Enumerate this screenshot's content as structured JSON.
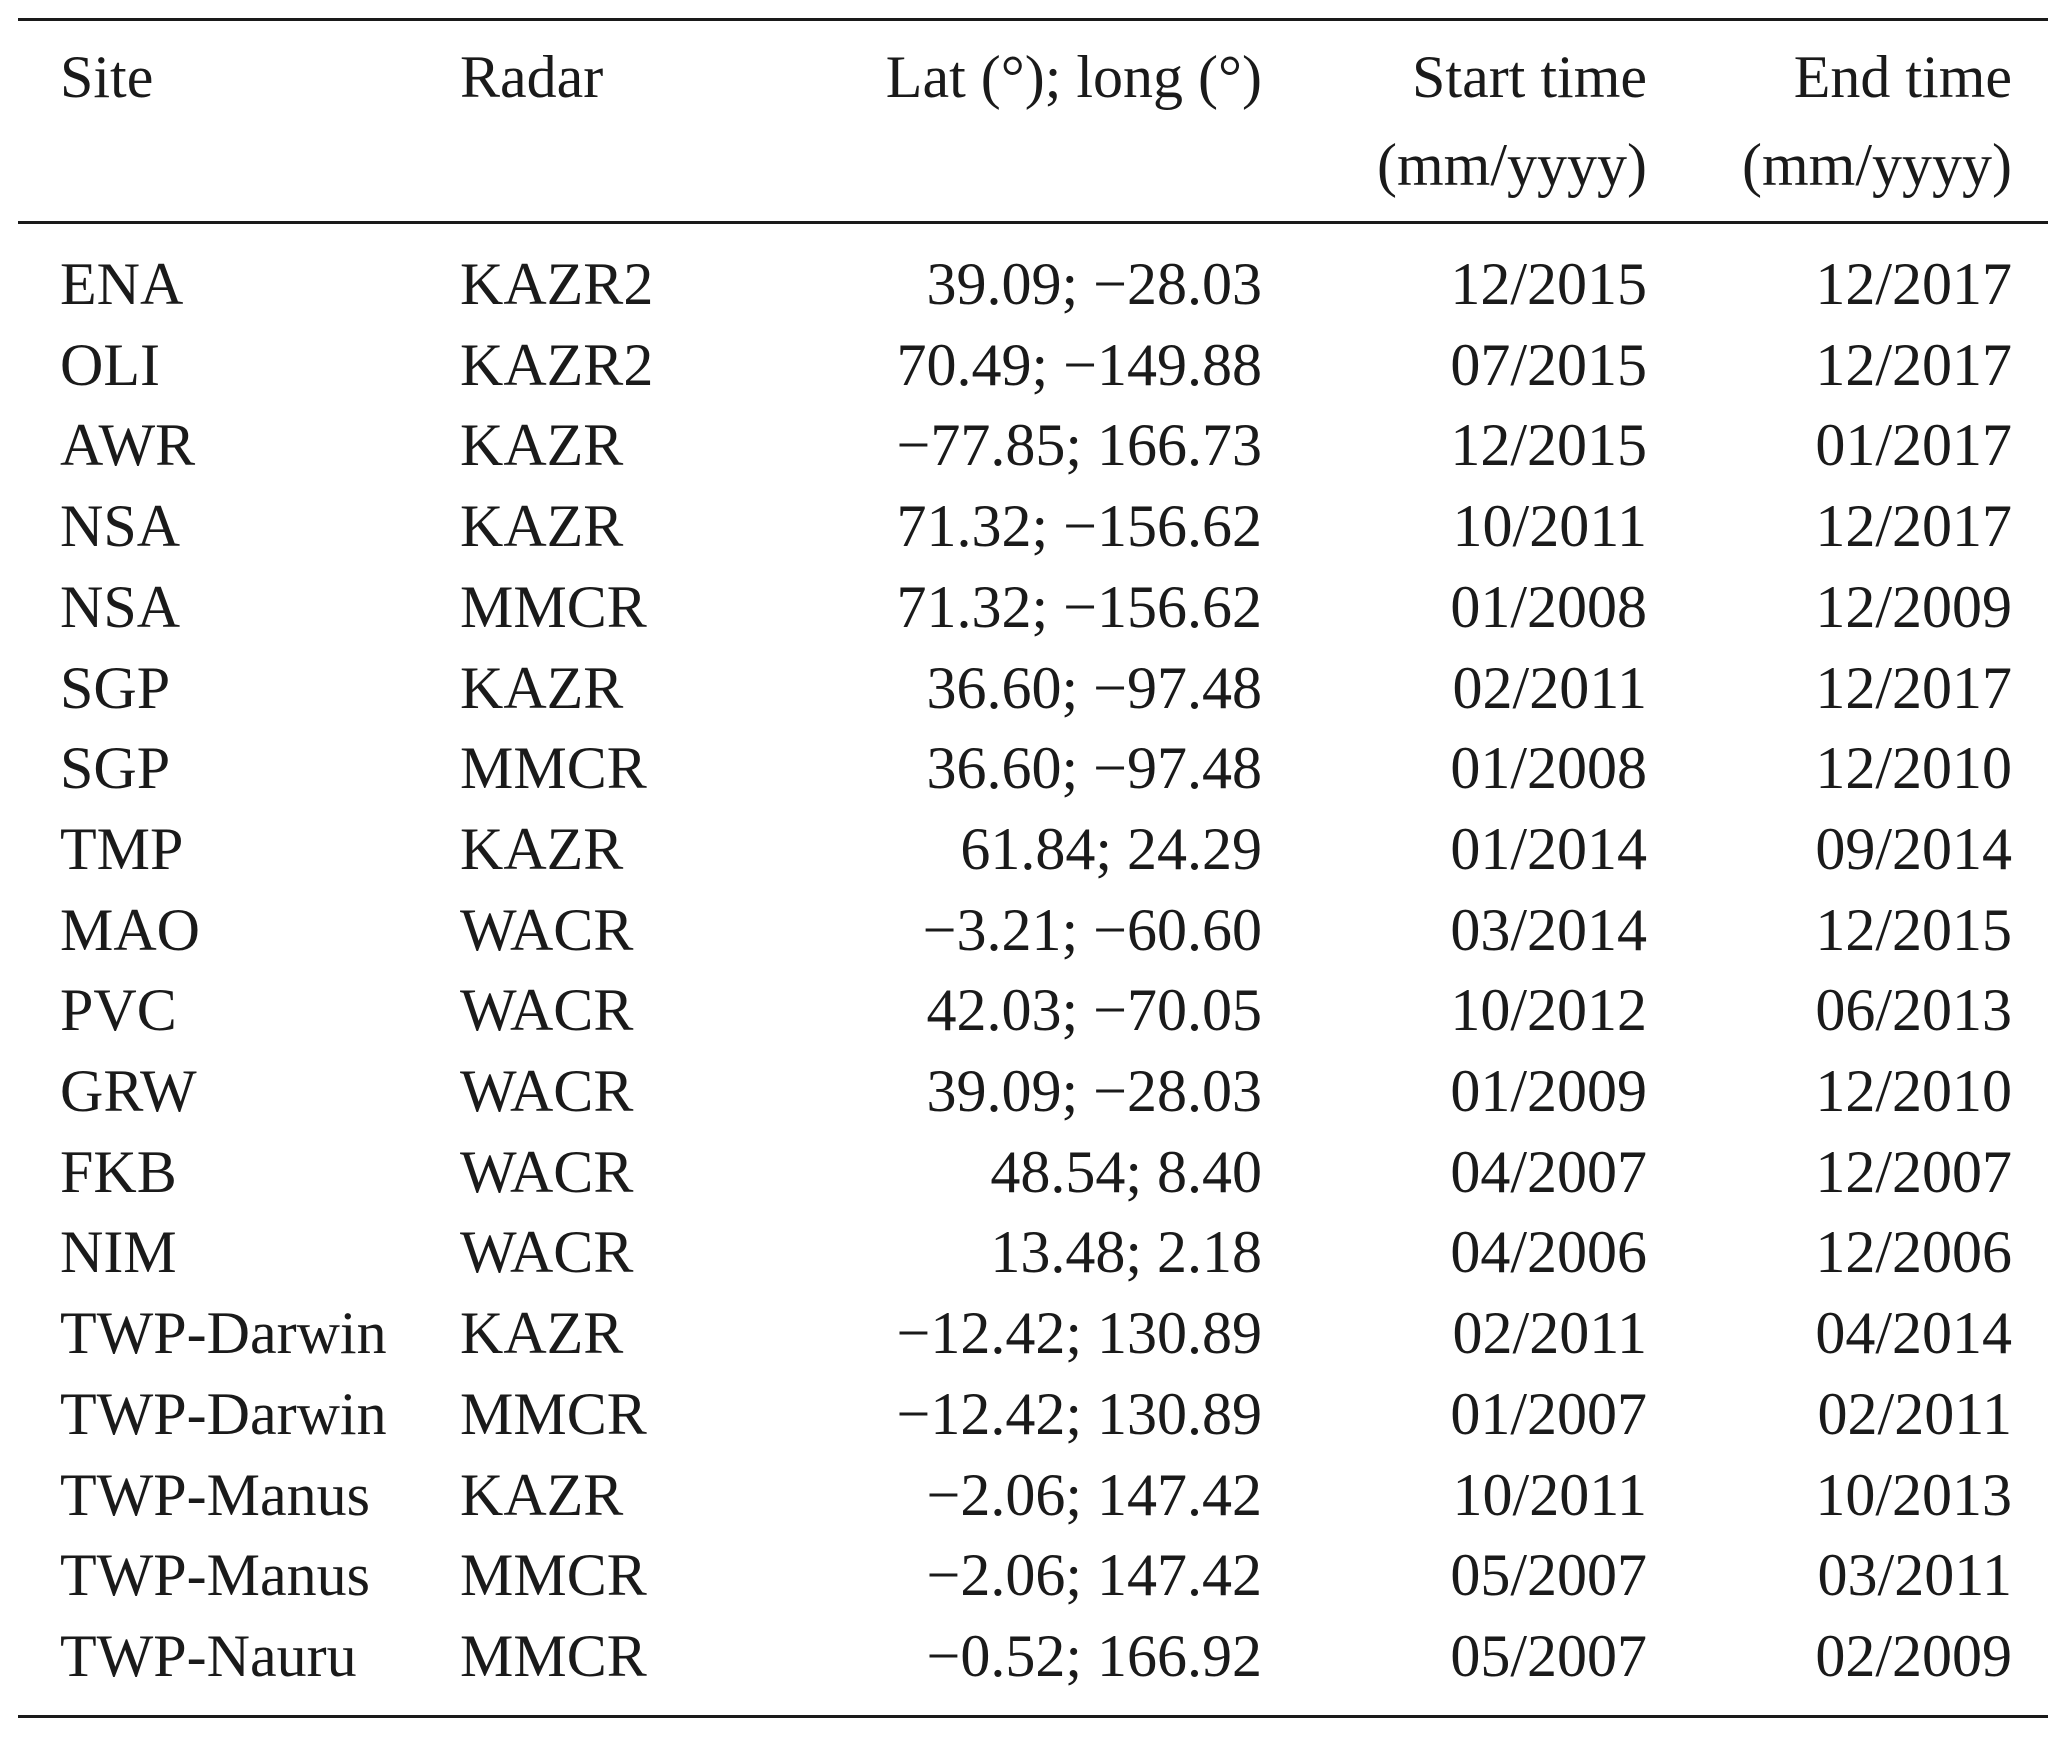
{
  "table": {
    "headers": {
      "site": "Site",
      "radar": "Radar",
      "latlon": "Lat (°); long (°)",
      "start_line1": "Start time",
      "start_line2": "(mm/yyyy)",
      "end_line1": "End time",
      "end_line2": "(mm/yyyy)"
    },
    "rows": [
      {
        "site": "ENA",
        "radar": "KAZR2",
        "latlon": "39.09; −28.03",
        "start": "12/2015",
        "end": "12/2017"
      },
      {
        "site": "OLI",
        "radar": "KAZR2",
        "latlon": "70.49; −149.88",
        "start": "07/2015",
        "end": "12/2017"
      },
      {
        "site": "AWR",
        "radar": "KAZR",
        "latlon": "−77.85; 166.73",
        "start": "12/2015",
        "end": "01/2017"
      },
      {
        "site": "NSA",
        "radar": "KAZR",
        "latlon": "71.32; −156.62",
        "start": "10/2011",
        "end": "12/2017"
      },
      {
        "site": "NSA",
        "radar": "MMCR",
        "latlon": "71.32; −156.62",
        "start": "01/2008",
        "end": "12/2009"
      },
      {
        "site": "SGP",
        "radar": "KAZR",
        "latlon": "36.60; −97.48",
        "start": "02/2011",
        "end": "12/2017"
      },
      {
        "site": "SGP",
        "radar": "MMCR",
        "latlon": "36.60; −97.48",
        "start": "01/2008",
        "end": "12/2010"
      },
      {
        "site": "TMP",
        "radar": "KAZR",
        "latlon": "61.84; 24.29",
        "start": "01/2014",
        "end": "09/2014"
      },
      {
        "site": "MAO",
        "radar": "WACR",
        "latlon": "−3.21; −60.60",
        "start": "03/2014",
        "end": "12/2015"
      },
      {
        "site": "PVC",
        "radar": "WACR",
        "latlon": "42.03; −70.05",
        "start": "10/2012",
        "end": "06/2013"
      },
      {
        "site": "GRW",
        "radar": "WACR",
        "latlon": "39.09; −28.03",
        "start": "01/2009",
        "end": "12/2010"
      },
      {
        "site": "FKB",
        "radar": "WACR",
        "latlon": "48.54; 8.40",
        "start": "04/2007",
        "end": "12/2007"
      },
      {
        "site": "NIM",
        "radar": "WACR",
        "latlon": "13.48; 2.18",
        "start": "04/2006",
        "end": "12/2006"
      },
      {
        "site": "TWP-Darwin",
        "radar": "KAZR",
        "latlon": "−12.42; 130.89",
        "start": "02/2011",
        "end": "04/2014"
      },
      {
        "site": "TWP-Darwin",
        "radar": "MMCR",
        "latlon": "−12.42; 130.89",
        "start": "01/2007",
        "end": "02/2011"
      },
      {
        "site": "TWP-Manus",
        "radar": "KAZR",
        "latlon": "−2.06; 147.42",
        "start": "10/2011",
        "end": "10/2013"
      },
      {
        "site": "TWP-Manus",
        "radar": "MMCR",
        "latlon": "−2.06; 147.42",
        "start": "05/2007",
        "end": "03/2011"
      },
      {
        "site": "TWP-Nauru",
        "radar": "MMCR",
        "latlon": "−0.52; 166.92",
        "start": "05/2007",
        "end": "02/2009"
      }
    ]
  }
}
